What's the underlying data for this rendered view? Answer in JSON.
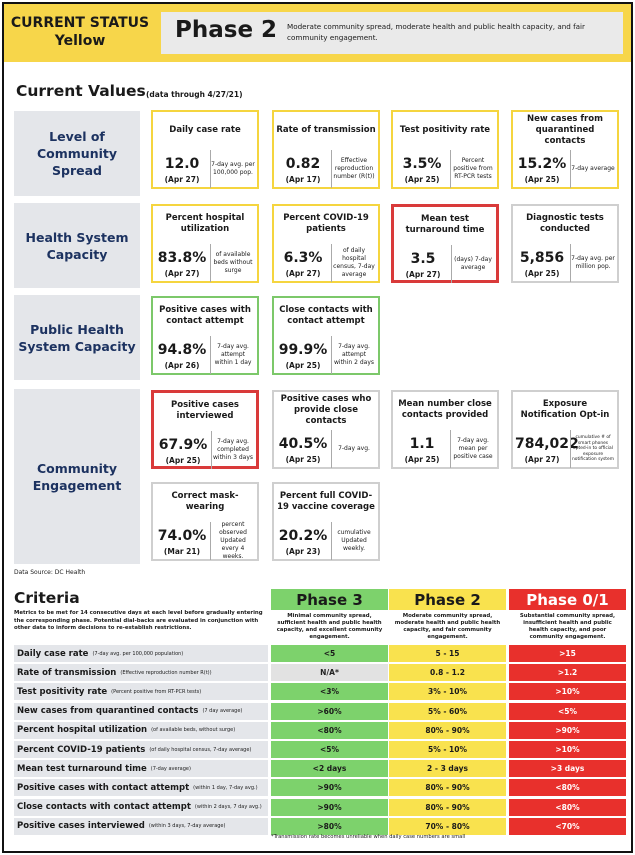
{
  "header": {
    "status_line1": "CURRENT STATUS",
    "status_line2": "Yellow",
    "phase": "Phase 2",
    "description": "Moderate community spread, moderate health and public health capacity, and fair community engagement."
  },
  "current_values": {
    "title": "Current Values",
    "subtitle": "(data through 4/27/21)",
    "categories": [
      "Level of Community Spread",
      "Health System Capacity",
      "Public Health System Capacity",
      "Community Engagement"
    ],
    "cards": [
      {
        "title": "Daily case rate",
        "value": "12.0",
        "date": "(Apr 27)",
        "note": "7-day avg. per 100,000 pop.",
        "color": "yellow"
      },
      {
        "title": "Rate of transmission",
        "value": "0.82",
        "date": "(Apr 17)",
        "note": "Effective reproduction number (R(t))",
        "color": "yellow"
      },
      {
        "title": "Test positivity rate",
        "value": "3.5%",
        "date": "(Apr 25)",
        "note": "Percent positive from RT-PCR tests",
        "color": "yellow"
      },
      {
        "title": "New cases from quarantined contacts",
        "value": "15.2%",
        "date": "(Apr 25)",
        "note": "7-day average",
        "color": "yellow"
      },
      {
        "title": "Percent hospital utilization",
        "value": "83.8%",
        "date": "(Apr 27)",
        "note": "of available beds without surge",
        "color": "yellow"
      },
      {
        "title": "Percent COVID-19 patients",
        "value": "6.3%",
        "date": "(Apr 27)",
        "note": "of daily hospital census, 7-day average",
        "color": "yellow"
      },
      {
        "title": "Mean test turnaround time",
        "value": "3.5",
        "date": "(Apr 27)",
        "note": "(days) 7-day average",
        "color": "red"
      },
      {
        "title": "Diagnostic tests conducted",
        "value": "5,856",
        "date": "(Apr 25)",
        "note": "7-day avg. per million pop.",
        "color": "gray"
      },
      {
        "title": "Positive cases with contact attempt",
        "value": "94.8%",
        "date": "(Apr 26)",
        "note": "7-day avg. attempt within 1 day",
        "color": "green"
      },
      {
        "title": "Close contacts with contact attempt",
        "value": "99.9%",
        "date": "(Apr 25)",
        "note": "7-day avg. attempt within 2 days",
        "color": "green"
      },
      {
        "title": "Positive cases interviewed",
        "value": "67.9%",
        "date": "(Apr 25)",
        "note": "7-day avg. completed within 3 days",
        "color": "red"
      },
      {
        "title": "Positive cases who provide close contacts",
        "value": "40.5%",
        "date": "(Apr 25)",
        "note": "7-day avg.",
        "color": "gray"
      },
      {
        "title": "Mean number close contacts provided",
        "value": "1.1",
        "date": "(Apr 25)",
        "note": "7-day avg. mean per positive case",
        "color": "gray"
      },
      {
        "title": "Exposure Notification Opt-in",
        "value": "784,022",
        "date": "(Apr 27)",
        "note": "cumulative # of smart phones opted-in to official exposure notification system",
        "color": "gray"
      },
      {
        "title": "Correct mask-wearing",
        "value": "74.0%",
        "date": "(Mar 21)",
        "note": "percent observed Updated every 4 weeks.",
        "color": "gray"
      },
      {
        "title": "Percent full COVID-19 vaccine coverage",
        "value": "20.2%",
        "date": "(Apr 23)",
        "note": "cumulative Updated weekly.",
        "color": "gray"
      }
    ],
    "source": "Data Source: DC Health"
  },
  "criteria": {
    "title": "Criteria",
    "note": "Metrics to be met for 14 consecutive days at each level before gradually entering the corresponding phase. Potential dial-backs are evaluated in conjunction with other data to inform decisions to re-establish restrictions.",
    "phases": [
      {
        "name": "Phase 3",
        "desc": "Minimal community spread, sufficient health and public health capacity, and excellent community engagement.",
        "color": "#7dd26c"
      },
      {
        "name": "Phase 2",
        "desc": "Moderate community spread, moderate health and public health capacity, and fair community engagement.",
        "color": "#f9e24e"
      },
      {
        "name": "Phase 0/1",
        "desc": "Substantial community spread, insufficient health and public health capacity, and poor community engagement.",
        "color": "#e8302c"
      }
    ],
    "rows": [
      {
        "label": "Daily case rate",
        "sub": "(7-day avg. per 100,000 population)",
        "p3": "<5",
        "p2": "5 - 15",
        "p1": ">15"
      },
      {
        "label": "Rate of transmission",
        "sub": "(Effective reproduction number R(t))",
        "p3": "N/A*",
        "p2": "0.8 - 1.2",
        "p1": ">1.2"
      },
      {
        "label": "Test positivity rate",
        "sub": "(Percent positive from RT-PCR tests)",
        "p3": "<3%",
        "p2": "3% - 10%",
        "p1": ">10%"
      },
      {
        "label": "New cases from quarantined contacts",
        "sub": "(7 day average)",
        "p3": ">60%",
        "p2": "5% - 60%",
        "p1": "<5%"
      },
      {
        "label": "Percent hospital utilization",
        "sub": "(of available beds, without surge)",
        "p3": "<80%",
        "p2": "80% - 90%",
        "p1": ">90%"
      },
      {
        "label": "Percent COVID-19 patients",
        "sub": "(of daily hospital census, 7-day average)",
        "p3": "<5%",
        "p2": "5% - 10%",
        "p1": ">10%"
      },
      {
        "label": "Mean test turnaround time",
        "sub": "(7-day average)",
        "p3": "<2 days",
        "p2": "2 - 3 days",
        "p1": ">3 days"
      },
      {
        "label": "Positive cases with contact attempt",
        "sub": "(within 1 day, 7-day avg.)",
        "p3": ">90%",
        "p2": "80% - 90%",
        "p1": "<80%"
      },
      {
        "label": "Close contacts with contact attempt",
        "sub": "(within 2 days, 7 day avg.)",
        "p3": ">90%",
        "p2": "80% - 90%",
        "p1": "<80%"
      },
      {
        "label": "Positive cases interviewed",
        "sub": "(within 3 days, 7-day average)",
        "p3": ">80%",
        "p2": "70% - 80%",
        "p1": "<70%"
      }
    ],
    "footnote": "*Transmission rate becomes unreliable when daily case numbers are small"
  }
}
